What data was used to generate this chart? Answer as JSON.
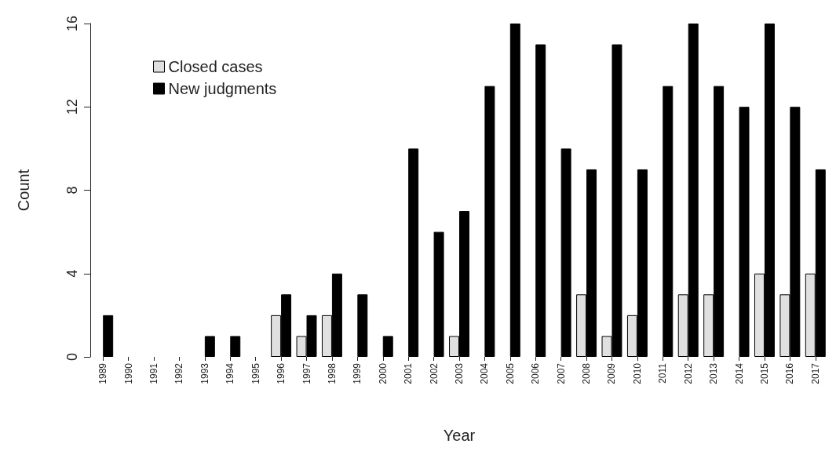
{
  "chart_data": {
    "type": "bar",
    "xlabel": "Year",
    "ylabel": "Count",
    "categories": [
      "1989",
      "1990",
      "1991",
      "1992",
      "1993",
      "1994",
      "1995",
      "1996",
      "1997",
      "1998",
      "1999",
      "2000",
      "2001",
      "2002",
      "2003",
      "2004",
      "2005",
      "2006",
      "2007",
      "2008",
      "2009",
      "2010",
      "2011",
      "2012",
      "2013",
      "2014",
      "2015",
      "2016",
      "2017"
    ],
    "series": [
      {
        "name": "Closed cases",
        "color": "#e0e0e0",
        "values": [
          0,
          0,
          0,
          0,
          0,
          0,
          0,
          2,
          1,
          2,
          0,
          0,
          0,
          0,
          1,
          0,
          0,
          0,
          0,
          3,
          1,
          2,
          0,
          3,
          3,
          0,
          4,
          3,
          4
        ]
      },
      {
        "name": "New judgments",
        "color": "#000000",
        "values": [
          2,
          0,
          0,
          0,
          1,
          1,
          0,
          3,
          2,
          4,
          3,
          1,
          10,
          6,
          7,
          13,
          16,
          15,
          10,
          9,
          15,
          9,
          13,
          16,
          13,
          12,
          16,
          12,
          9
        ]
      }
    ],
    "ylim": [
      0,
      16
    ],
    "yticks": [
      0,
      4,
      8,
      12,
      16
    ],
    "grid": false,
    "legend": "top left"
  }
}
